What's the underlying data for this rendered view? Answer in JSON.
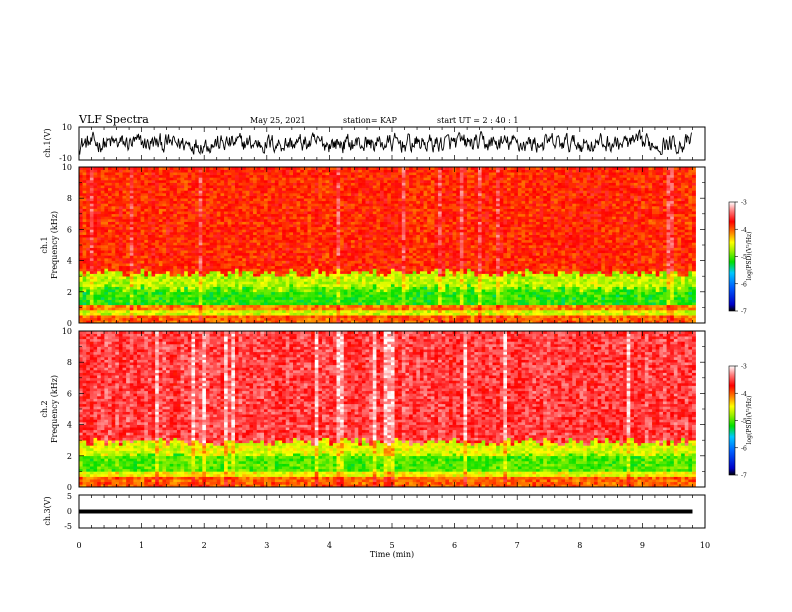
{
  "header": {
    "title": "VLF Spectra",
    "date": "May 25, 2021",
    "station": "station= KAP",
    "start": "start  UT  =   2 : 40 : 1"
  },
  "chart_data": [
    {
      "type": "line",
      "panel": "ch1-waveform",
      "ylabel": "ch.1(V)",
      "ylim": [
        -10,
        10
      ],
      "yticks": [
        "10",
        "-10"
      ],
      "xlim": [
        0,
        10
      ],
      "series_color": "#000000"
    },
    {
      "type": "heatmap",
      "panel": "ch1-spectrogram",
      "ylabel_top": "ch.1",
      "ylabel": "Frequency (kHz)",
      "ylim": [
        0,
        10
      ],
      "yticks": [
        "0",
        "2",
        "4",
        "6",
        "8",
        "10"
      ],
      "xlim": [
        0,
        9.85
      ],
      "bands": [
        {
          "from": 0,
          "to": 0.5,
          "level": -4.0
        },
        {
          "from": 0.5,
          "to": 0.8,
          "level": -4.6
        },
        {
          "from": 0.8,
          "to": 1.2,
          "level": -4.1
        },
        {
          "from": 1.2,
          "to": 2.2,
          "level": -5.1
        },
        {
          "from": 2.2,
          "to": 3.2,
          "level": -4.7
        },
        {
          "from": 3.2,
          "to": 10,
          "level": -3.8
        }
      ],
      "colorbar": {
        "label": "log(PSD)(V²/Hz)",
        "range": [
          -7,
          -3
        ],
        "ticks": [
          "-3",
          "-4",
          "-5",
          "-6",
          "-7"
        ]
      }
    },
    {
      "type": "heatmap",
      "panel": "ch2-spectrogram",
      "ylabel_top": "ch.2",
      "ylabel": "Frequency (kHz)",
      "ylim": [
        0,
        10
      ],
      "yticks": [
        "0",
        "2",
        "4",
        "6",
        "8",
        "10"
      ],
      "xlim": [
        0,
        9.85
      ],
      "bands": [
        {
          "from": 0,
          "to": 0.6,
          "level": -4.0
        },
        {
          "from": 0.6,
          "to": 1.0,
          "level": -4.5
        },
        {
          "from": 1.0,
          "to": 2.0,
          "level": -5.0
        },
        {
          "from": 2.0,
          "to": 2.9,
          "level": -4.6
        },
        {
          "from": 2.9,
          "to": 10,
          "level": -3.5
        }
      ],
      "colorbar": {
        "label": "log(PSD)(V²/Hz)",
        "range": [
          -7,
          -3
        ],
        "ticks": [
          "-3",
          "-4",
          "-5",
          "-6",
          "-7"
        ]
      }
    },
    {
      "type": "line",
      "panel": "ch3-waveform",
      "ylabel": "ch.3(V)",
      "ylim": [
        -5,
        5
      ],
      "yticks": [
        "5",
        "0",
        "-5"
      ],
      "xlim": [
        0,
        10
      ],
      "band": [
        -0.6,
        0.6
      ],
      "series_color": "#000000"
    }
  ],
  "xaxis": {
    "label": "Time  (min)",
    "ticks": [
      "0",
      "1",
      "2",
      "3",
      "4",
      "5",
      "6",
      "7",
      "8",
      "9",
      "10"
    ]
  }
}
